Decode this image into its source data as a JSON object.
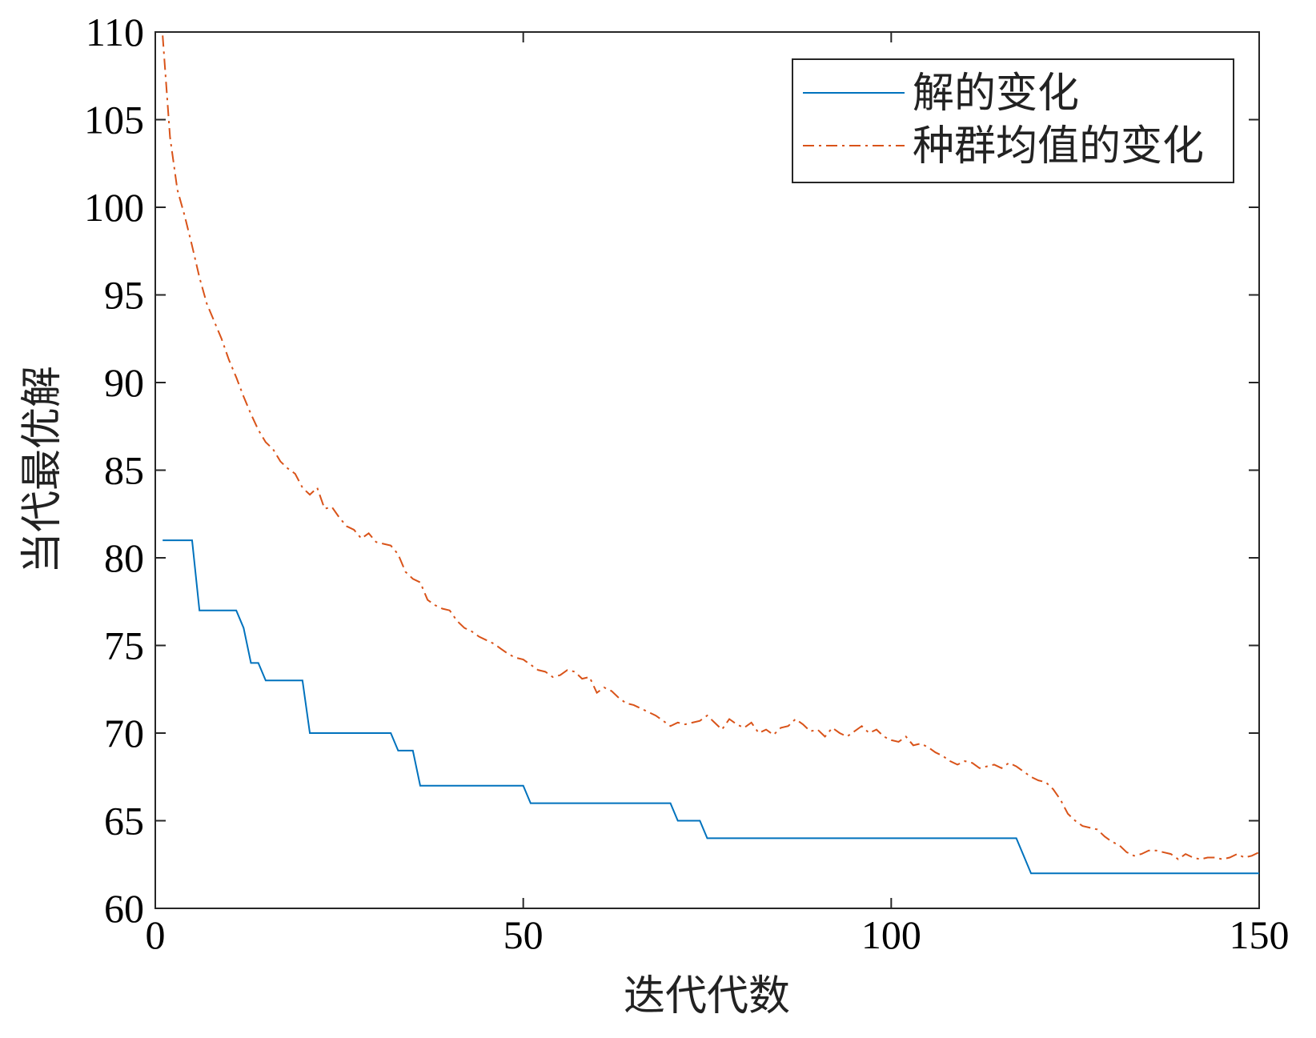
{
  "chart_data": {
    "type": "line",
    "x_label": "迭代代数",
    "y_label": "当代最优解",
    "xlim": [
      0,
      150
    ],
    "xticks": [
      0,
      50,
      100,
      150
    ],
    "ylim": [
      60,
      110
    ],
    "yticks": [
      60,
      65,
      70,
      75,
      80,
      85,
      90,
      95,
      100,
      105,
      110
    ],
    "legend": "upper right",
    "x": [
      1,
      2,
      3,
      4,
      5,
      6,
      7,
      8,
      9,
      10,
      11,
      12,
      13,
      14,
      15,
      16,
      17,
      18,
      19,
      20,
      21,
      22,
      23,
      24,
      25,
      26,
      27,
      28,
      29,
      30,
      31,
      32,
      33,
      34,
      35,
      36,
      37,
      38,
      39,
      40,
      41,
      42,
      43,
      44,
      45,
      46,
      47,
      48,
      49,
      50,
      51,
      52,
      53,
      54,
      55,
      56,
      57,
      58,
      59,
      60,
      61,
      62,
      63,
      64,
      65,
      66,
      67,
      68,
      69,
      70,
      71,
      72,
      73,
      74,
      75,
      76,
      77,
      78,
      79,
      80,
      81,
      82,
      83,
      84,
      85,
      86,
      87,
      88,
      89,
      90,
      91,
      92,
      93,
      94,
      95,
      96,
      97,
      98,
      99,
      100,
      101,
      102,
      103,
      104,
      105,
      106,
      107,
      108,
      109,
      110,
      111,
      112,
      113,
      114,
      115,
      116,
      117,
      118,
      119,
      120,
      121,
      122,
      123,
      124,
      125,
      126,
      127,
      128,
      129,
      130,
      131,
      132,
      133,
      134,
      135,
      136,
      137,
      138,
      139,
      140,
      141,
      142,
      143,
      144,
      145,
      146,
      147,
      148,
      149,
      150
    ],
    "series": [
      {
        "name": "解的变化",
        "color": "#0072BD",
        "dash": "solid",
        "values": [
          81,
          81,
          81,
          81,
          81,
          77,
          77,
          77,
          77,
          77,
          77,
          76,
          74,
          74,
          73,
          73,
          73,
          73,
          73,
          73,
          70,
          70,
          70,
          70,
          70,
          70,
          70,
          70,
          70,
          70,
          70,
          70,
          69,
          69,
          69,
          67,
          67,
          67,
          67,
          67,
          67,
          67,
          67,
          67,
          67,
          67,
          67,
          67,
          67,
          67,
          66,
          66,
          66,
          66,
          66,
          66,
          66,
          66,
          66,
          66,
          66,
          66,
          66,
          66,
          66,
          66,
          66,
          66,
          66,
          66,
          65,
          65,
          65,
          65,
          64,
          64,
          64,
          64,
          64,
          64,
          64,
          64,
          64,
          64,
          64,
          64,
          64,
          64,
          64,
          64,
          64,
          64,
          64,
          64,
          64,
          64,
          64,
          64,
          64,
          64,
          64,
          64,
          64,
          64,
          64,
          64,
          64,
          64,
          64,
          64,
          64,
          64,
          64,
          64,
          64,
          64,
          64,
          63,
          62,
          62,
          62,
          62,
          62,
          62,
          62,
          62,
          62,
          62,
          62,
          62,
          62,
          62,
          62,
          62,
          62,
          62,
          62,
          62,
          62,
          62,
          62,
          62,
          62,
          62,
          62,
          62,
          62,
          62,
          62,
          62
        ]
      },
      {
        "name": "种群均值的变化",
        "color": "#D95319",
        "dash": "dashdot",
        "values": [
          109.8,
          104,
          101,
          99.5,
          97.8,
          96,
          94.5,
          93.5,
          92.5,
          91.3,
          90.3,
          89.2,
          88.2,
          87.3,
          86.6,
          86.2,
          85.5,
          85.1,
          84.8,
          84.0,
          83.6,
          84.0,
          82.8,
          82.9,
          82.3,
          81.8,
          81.6,
          81.1,
          81.4,
          80.9,
          80.8,
          80.7,
          80.2,
          79.2,
          78.8,
          78.6,
          77.6,
          77.3,
          77.1,
          77.0,
          76.4,
          76.0,
          75.8,
          75.5,
          75.3,
          75.1,
          74.8,
          74.5,
          74.3,
          74.2,
          73.9,
          73.6,
          73.5,
          73.2,
          73.3,
          73.6,
          73.5,
          73.1,
          73.2,
          72.3,
          72.6,
          72.4,
          72.0,
          71.7,
          71.6,
          71.4,
          71.2,
          71.0,
          70.7,
          70.4,
          70.6,
          70.5,
          70.6,
          70.7,
          71.0,
          70.6,
          70.2,
          70.8,
          70.5,
          70.3,
          70.6,
          70.0,
          70.2,
          69.9,
          70.3,
          70.4,
          70.8,
          70.5,
          70.1,
          70.2,
          69.8,
          70.3,
          70.0,
          69.8,
          70.1,
          70.4,
          70.0,
          70.2,
          69.8,
          69.6,
          69.5,
          69.8,
          69.3,
          69.4,
          69.2,
          68.9,
          68.7,
          68.4,
          68.2,
          68.4,
          68.3,
          68.0,
          68.1,
          68.2,
          68.0,
          68.3,
          68.1,
          67.8,
          67.5,
          67.3,
          67.2,
          66.8,
          66.2,
          65.4,
          65.0,
          64.7,
          64.6,
          64.5,
          64.1,
          63.8,
          63.6,
          63.2,
          63.0,
          63.1,
          63.3,
          63.3,
          63.2,
          63.1,
          62.8,
          63.1,
          62.9,
          62.8,
          62.9,
          62.9,
          62.8,
          62.9,
          63.1,
          62.9,
          63.0,
          63.2
        ]
      }
    ]
  }
}
